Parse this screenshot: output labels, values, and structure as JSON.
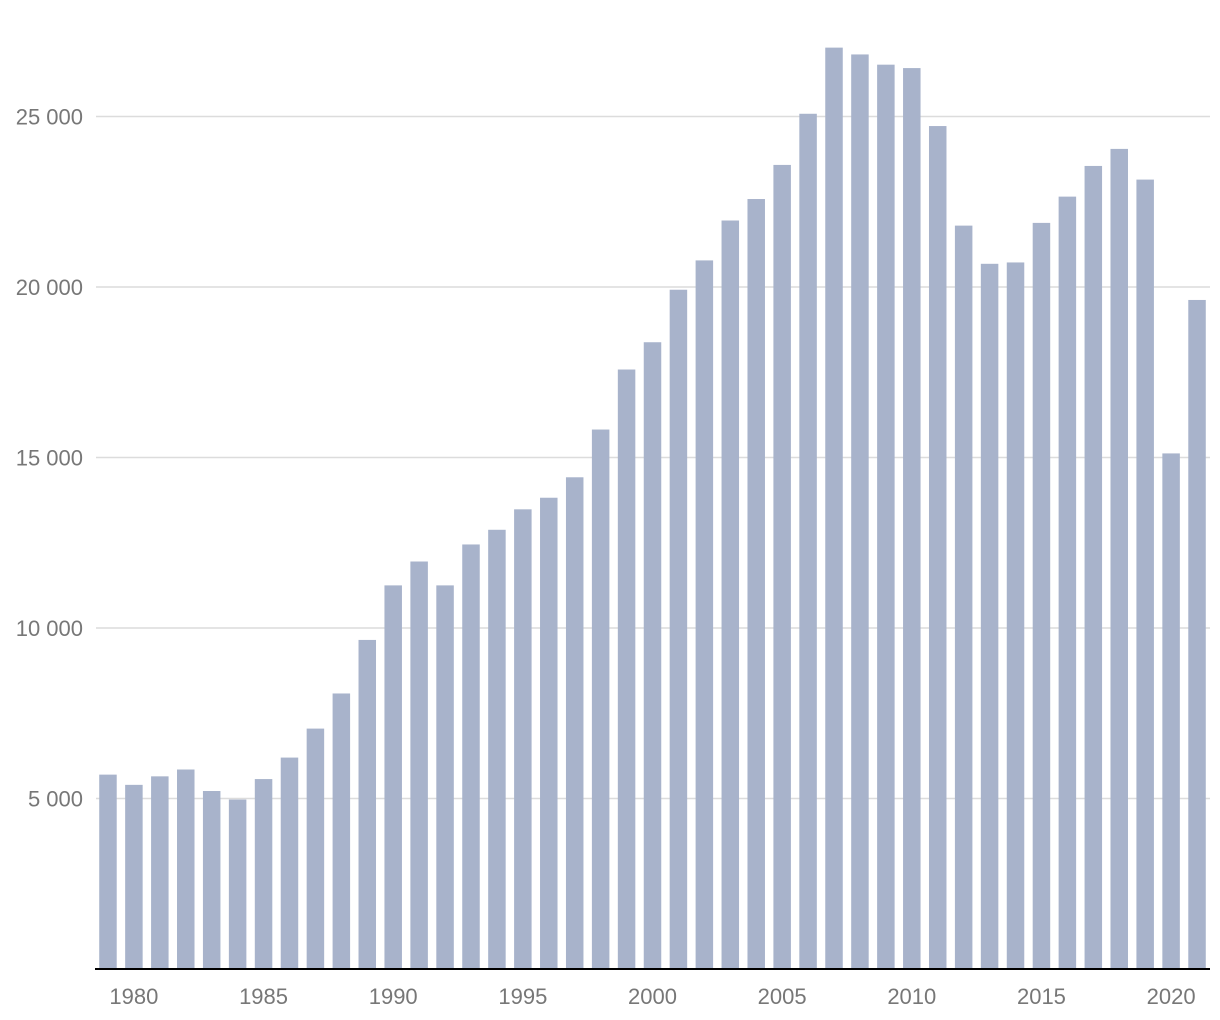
{
  "chart_data": {
    "type": "bar",
    "title": "",
    "xlabel": "",
    "ylabel": "",
    "x": [
      1979,
      1980,
      1981,
      1982,
      1983,
      1984,
      1985,
      1986,
      1987,
      1988,
      1989,
      1990,
      1991,
      1992,
      1993,
      1994,
      1995,
      1996,
      1997,
      1998,
      1999,
      2000,
      2001,
      2002,
      2003,
      2004,
      2005,
      2006,
      2007,
      2008,
      2009,
      2010,
      2011,
      2012,
      2013,
      2014,
      2015,
      2016,
      2017,
      2018,
      2019,
      2020,
      2021
    ],
    "values": [
      5700,
      5400,
      5650,
      5850,
      5220,
      4970,
      5570,
      6200,
      7050,
      8080,
      9650,
      11250,
      11950,
      11250,
      12450,
      12880,
      13480,
      13820,
      14420,
      15820,
      17580,
      18380,
      19920,
      20780,
      21950,
      22580,
      23580,
      25080,
      27020,
      26820,
      26520,
      26420,
      24720,
      21800,
      20680,
      20720,
      21880,
      22650,
      23550,
      24050,
      23150,
      15120,
      19620
    ],
    "ylim": [
      0,
      27000
    ],
    "yticks": [
      5000,
      10000,
      15000,
      20000,
      25000
    ],
    "ytick_labels": [
      "5 000",
      "10 000",
      "15 000",
      "20 000",
      "25 000"
    ],
    "xticks": [
      1980,
      1985,
      1990,
      1995,
      2000,
      2005,
      2010,
      2015,
      2020
    ],
    "xtick_labels": [
      "1980",
      "1985",
      "1990",
      "1995",
      "2000",
      "2005",
      "2010",
      "2015",
      "2020"
    ],
    "grid": true,
    "legend": "none",
    "colors": {
      "bar": "#a8b3cb",
      "grid": "#dcdcdc",
      "axis": "#000000",
      "tick_text": "#777777"
    }
  }
}
